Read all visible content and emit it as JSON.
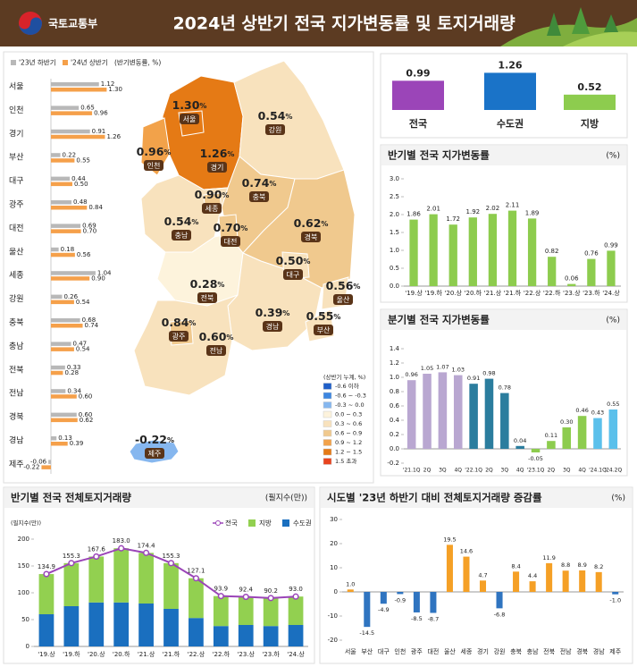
{
  "header": {
    "logo": "국토교통부",
    "title": "2024년 상반기 전국 지가변동률 및 토지거래량"
  },
  "chart_data": [
    {
      "type": "hbar",
      "categories": [
        "서울",
        "인천",
        "경기",
        "부산",
        "대구",
        "광주",
        "대전",
        "울산",
        "세종",
        "강원",
        "충북",
        "충남",
        "전북",
        "전남",
        "경북",
        "경남",
        "제주"
      ],
      "series": [
        {
          "name": "'23년 하반기",
          "color": "#b8b8b8",
          "values": [
            1.12,
            0.65,
            0.91,
            0.22,
            0.44,
            0.48,
            0.69,
            0.18,
            1.04,
            0.26,
            0.68,
            0.47,
            0.33,
            0.34,
            0.6,
            0.13,
            -0.06
          ],
          "value_labels": [
            "1.12",
            "0.65",
            "0.91",
            "0.22",
            "0.44",
            "0.48",
            "0.69",
            "0.18",
            "1.04",
            "0.26",
            "0.68",
            "0.47",
            "0.33",
            "0.34",
            "0.60",
            "0.13",
            "-0.06"
          ]
        },
        {
          "name": "'24년 상반기",
          "color": "#f5a04a",
          "values": [
            1.3,
            0.96,
            1.26,
            0.55,
            0.5,
            0.84,
            0.7,
            0.56,
            0.9,
            0.54,
            0.74,
            0.54,
            0.28,
            0.6,
            0.62,
            0.39,
            -0.22
          ],
          "value_labels": [
            "1.30",
            "0.96",
            "1.26",
            "0.55",
            "0.50",
            "0.84",
            "0.70",
            "0.56",
            "0.90",
            "0.54",
            "0.74",
            "0.54",
            "0.28",
            "0.60",
            "0.62",
            "0.39",
            "-0.22"
          ]
        }
      ],
      "legend_note": "(반기변동률, %)",
      "map": {
        "unit": "%",
        "legend_title": "(상반기 누계, %)",
        "breaks": [
          -0.6,
          -0.3,
          0,
          0.3,
          0.6,
          0.9,
          1.2,
          1.5
        ],
        "legend": [
          {
            "label": "-0.6 이하",
            "color": "#1f5fc8"
          },
          {
            "label": "-0.6 ~ -0.3",
            "color": "#3d86e0"
          },
          {
            "label": "-0.3 ~ 0.0",
            "color": "#86b7ef"
          },
          {
            "label": "0.0 ~ 0.3",
            "color": "#fdf3dc"
          },
          {
            "label": "0.3 ~ 0.6",
            "color": "#f8e2bd"
          },
          {
            "label": "0.6 ~ 0.9",
            "color": "#f0c98e"
          },
          {
            "label": "0.9 ~ 1.2",
            "color": "#f2a24a"
          },
          {
            "label": "1.2 ~ 1.5",
            "color": "#e57a15"
          },
          {
            "label": "1.5 초과",
            "color": "#e8431e"
          }
        ]
      }
    },
    {
      "type": "summary",
      "categories": [
        "전국",
        "수도권",
        "지방"
      ],
      "values": [
        0.99,
        1.26,
        0.52
      ],
      "colors": [
        "#9b45b8",
        "#1a73c8",
        "#8dcc4e"
      ]
    },
    {
      "type": "bar",
      "title": "반기별 전국 지가변동률",
      "unit": "(%)",
      "categories": [
        "'19.상",
        "'19.하",
        "'20.상",
        "'20.하",
        "'21.상",
        "'21.하",
        "'22.상",
        "'22.하",
        "'23.상",
        "'23.하",
        "'24.상"
      ],
      "values": [
        1.86,
        2.01,
        1.72,
        1.92,
        2.02,
        2.11,
        1.89,
        0.82,
        0.06,
        0.76,
        0.99
      ],
      "color": "#8dcc4e",
      "ylim": [
        0,
        3
      ],
      "yticks": [
        {
          "value": 0,
          "label": "0.0"
        },
        0.5,
        {
          "value": 1,
          "label": "1.0"
        },
        1.5,
        {
          "value": 2,
          "label": "2.0"
        },
        2.5,
        {
          "value": 3,
          "label": "3.0"
        }
      ]
    },
    {
      "type": "bar",
      "title": "분기별 전국 지가변동률",
      "unit": "(%)",
      "categories": [
        "'21.1Q",
        "2Q",
        "3Q",
        "4Q",
        "'22.1Q",
        "2Q",
        "3Q",
        "4Q",
        "'23.1Q",
        "2Q",
        "3Q",
        "4Q",
        "'24.1Q",
        "'24.2Q"
      ],
      "values": [
        0.96,
        1.05,
        1.07,
        1.03,
        0.91,
        0.98,
        0.78,
        0.04,
        -0.05,
        0.11,
        0.3,
        0.46,
        0.43,
        0.55
      ],
      "value_labels": [
        "0.96",
        "1.05",
        "1.07",
        "1.03",
        "0.91",
        "0.98",
        "0.78",
        "0.04",
        "-0.05",
        "0.11",
        "0.30",
        "0.46",
        "0.43",
        "0.55"
      ],
      "colors": [
        "#b9a7d1",
        "#b9a7d1",
        "#b9a7d1",
        "#b9a7d1",
        "#2b7d9e",
        "#2b7d9e",
        "#2b7d9e",
        "#2b7d9e",
        "#8dcc4e",
        "#8dcc4e",
        "#8dcc4e",
        "#8dcc4e",
        "#5bc0eb",
        "#5bc0eb"
      ],
      "ylim": [
        -0.2,
        1.4
      ],
      "yticks": [
        -0.2,
        {
          "value": 0,
          "label": "0.0"
        },
        0.2,
        0.4,
        0.6,
        0.8,
        {
          "value": 1,
          "label": "1.0"
        },
        1.2,
        1.4
      ]
    },
    {
      "type": "combo",
      "title": "반기별 전국 전체토지거래량",
      "unit": "(필지수(만))",
      "y_label": "(필지수(만))",
      "categories": [
        "'19.상",
        "'19.하",
        "'20.상",
        "'20.하",
        "'21.상",
        "'21.하",
        "'22.상",
        "'22.하",
        "'23.상",
        "'23.하",
        "'24.상"
      ],
      "series": [
        {
          "name": "전국",
          "type": "line",
          "color": "#9b45b8",
          "values": [
            134.9,
            155.3,
            167.6,
            183.0,
            174.4,
            155.3,
            127.1,
            93.9,
            92.4,
            90.2,
            93.0
          ],
          "value_labels": [
            "134.9",
            "155.3",
            "167.6",
            "183.0",
            "174.4",
            "155.3",
            "127.1",
            "93.9",
            "92.4",
            "90.2",
            "93.0"
          ]
        },
        {
          "name": "지방",
          "type": "bar",
          "color": "#92d050",
          "values": [
            74.9,
            80.3,
            85.6,
            101.0,
            94.4,
            85.3,
            74.1,
            55.9,
            52.4,
            52.2,
            53.0
          ]
        },
        {
          "name": "수도권",
          "type": "bar",
          "color": "#1a6fbf",
          "values": [
            60,
            75,
            82,
            82,
            80,
            70,
            53,
            38,
            40,
            38,
            40
          ]
        }
      ],
      "ylim": [
        0,
        200
      ],
      "yticks": [
        0,
        50,
        100,
        150,
        200
      ]
    },
    {
      "type": "bar",
      "title": "시도별 '23년 하반기 대비 전체토지거래량 증감률",
      "unit": "(%)",
      "categories": [
        "서울",
        "부산",
        "대구",
        "인천",
        "광주",
        "대전",
        "울산",
        "세종",
        "경기",
        "강원",
        "충북",
        "충남",
        "전북",
        "전남",
        "경북",
        "경남",
        "제주"
      ],
      "values": [
        1.0,
        -14.5,
        -4.9,
        -0.9,
        -8.5,
        -8.7,
        19.5,
        14.6,
        4.7,
        -6.8,
        8.4,
        4.4,
        11.9,
        8.8,
        8.9,
        8.2,
        -1.0
      ],
      "value_labels": [
        "1.0",
        "-14.5",
        "-4.9",
        "-0.9",
        "-8.5",
        "-8.7",
        "19.5",
        "14.6",
        "4.7",
        "-6.8",
        "8.4",
        "4.4",
        "11.9",
        "8.8",
        "8.9",
        "8.2",
        "-1.0"
      ],
      "positive_color": "#f5a026",
      "negative_color": "#2f74c0",
      "ylim": [
        -20,
        30
      ],
      "yticks": [
        -20,
        -10,
        0,
        10,
        20,
        30
      ]
    }
  ]
}
